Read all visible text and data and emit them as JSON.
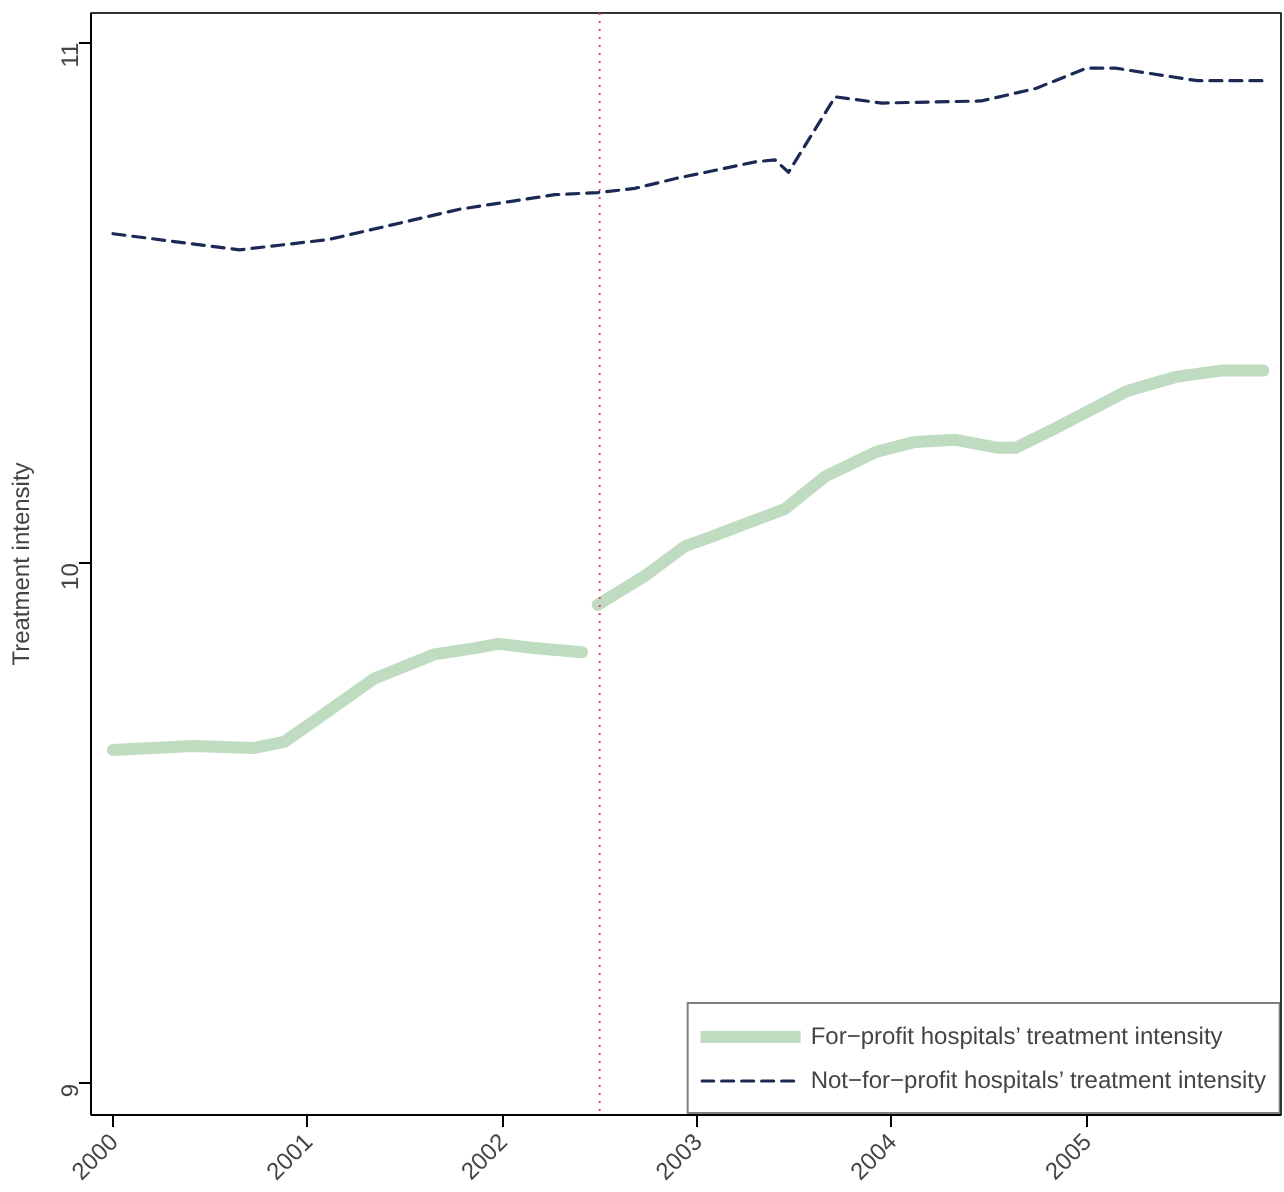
{
  "chart_data": {
    "type": "line",
    "ylabel": "Treatment intensity",
    "xlim": [
      1999.887,
      2006.0
    ],
    "ylim": [
      8.94,
      11.057
    ],
    "xticks": [
      2000,
      2001,
      2002,
      2003,
      2004,
      2005
    ],
    "yticks": [
      9,
      10,
      11
    ],
    "grid": false,
    "legend": "bottom right",
    "ref_lines": [
      {
        "axis": "x",
        "value": 2002.5,
        "color": "#e8406a",
        "line_style": "dotted"
      }
    ],
    "series": [
      {
        "name": "For−profit hospitals’ treatment intensity",
        "color": "#bfdcc0",
        "line_style": "solid",
        "x": [
          2000,
          2000.41,
          2000.72,
          2000.88,
          2001.03,
          2001.34,
          2001.65,
          2001.86,
          2001.98,
          2002.16,
          2002.41,
          2002.45,
          2002.49,
          2002.73,
          2002.94,
          2003.09,
          2003.25,
          2003.45,
          2003.66,
          2003.92,
          2004.12,
          2004.33,
          2004.54,
          2004.64,
          2004.85,
          2005.21,
          2005.46,
          2005.69,
          2005.91
        ],
        "values": [
          9.641,
          9.649,
          9.645,
          9.657,
          9.696,
          9.778,
          9.825,
          9.837,
          9.845,
          9.837,
          9.829,
          null,
          9.92,
          9.975,
          10.033,
          10.053,
          10.076,
          10.104,
          10.167,
          10.214,
          10.233,
          10.237,
          10.222,
          10.222,
          10.261,
          10.331,
          10.358,
          10.37,
          10.37
        ]
      },
      {
        "name": "Not−for−profit hospitals’ treatment intensity",
        "color": "#1a2a55",
        "line_style": "dashed",
        "x": [
          2000,
          2000.65,
          2001.11,
          2001.78,
          2002.27,
          2002.49,
          2002.68,
          2002.89,
          2003.3,
          2003.4,
          2003.47,
          2003.71,
          2003.95,
          2004.46,
          2004.74,
          2005.0,
          2005.15,
          2005.57,
          2005.91
        ],
        "values": [
          10.633,
          10.602,
          10.622,
          10.68,
          10.708,
          10.712,
          10.72,
          10.739,
          10.771,
          10.775,
          10.751,
          10.896,
          10.884,
          10.888,
          10.912,
          10.951,
          10.951,
          10.927,
          10.927
        ]
      }
    ]
  }
}
